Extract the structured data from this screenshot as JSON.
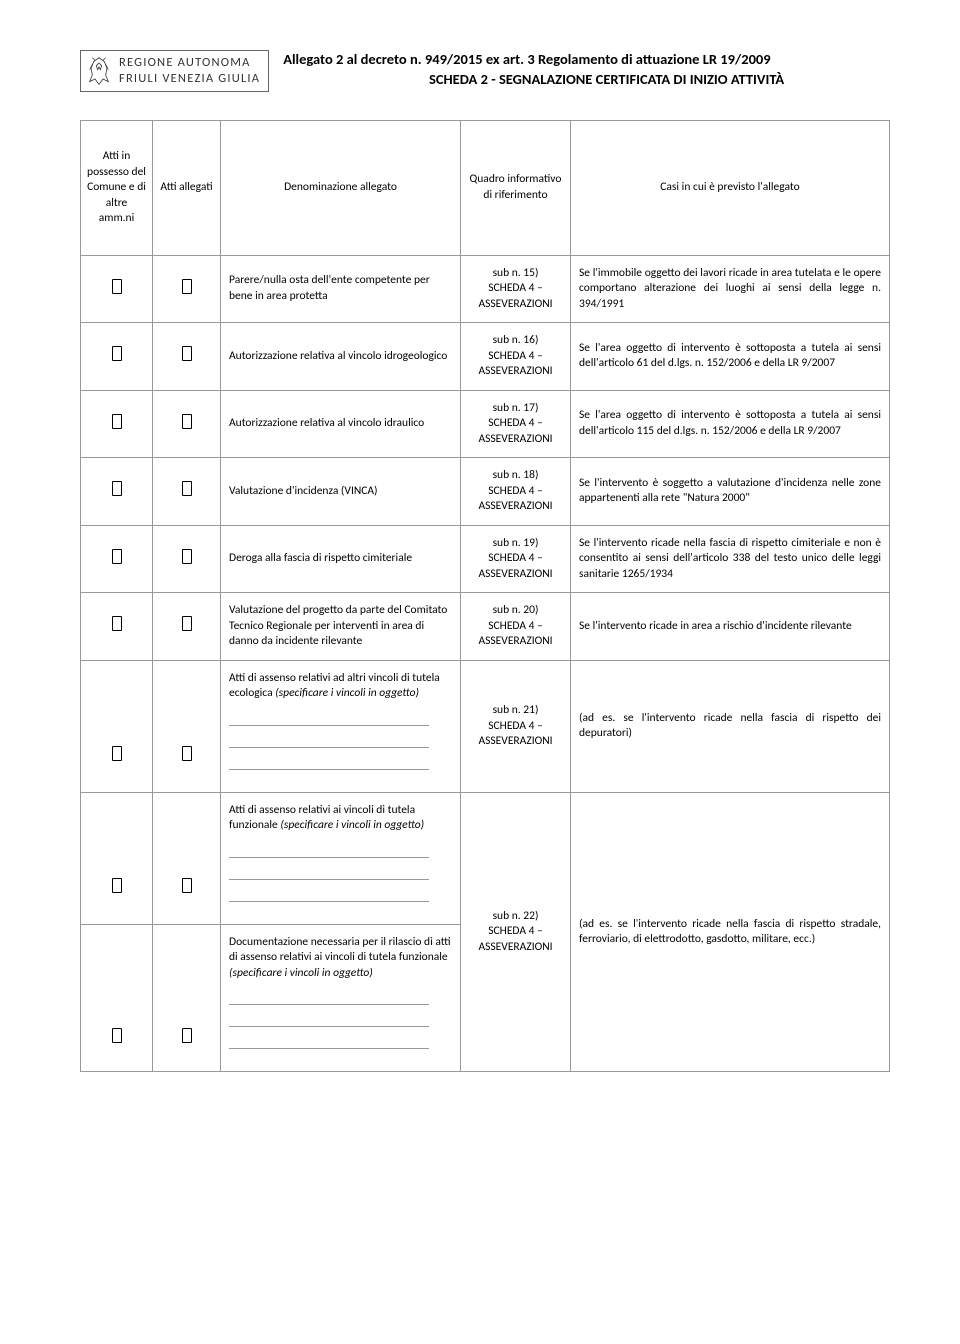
{
  "header": {
    "region_line1": "REGIONE AUTONOMA",
    "region_line2": "FRIULI VENEZIA GIULIA",
    "title1": "Allegato 2 al decreto n. 949/2015 ex art. 3 Regolamento di attuazione LR 19/2009",
    "title2": "SCHEDA  2   - SEGNALAZIONE  CERTIFICATA  DI INIZIO ATTIVITÀ"
  },
  "columns": {
    "c1": "Atti in possesso del Comune e di altre amm.ni",
    "c2": "Atti allegati",
    "c3": "Denominazione  allegato",
    "c4": "Quadro informativo di riferimento",
    "c5": "Casi in cui è previsto l'allegato"
  },
  "rows": [
    {
      "denom": "Parere/nulla osta dell'ente competente per bene in area protetta",
      "quadro": "sub n. 15)\nSCHEDA 4 –\nASSEVERAZIONI",
      "casi": "Se l'immobile oggetto dei lavori ricade in area tutelata e le opere comportano alterazione dei luoghi ai sensi della legge n. 394/1991"
    },
    {
      "denom": "Autorizzazione relativa al vincolo idrogeologico",
      "quadro": "sub n. 16)\nSCHEDA 4 –\nASSEVERAZIONI",
      "casi": "Se l'area oggetto di intervento è sottoposta a tutela ai sensi dell'articolo 61 del d.lgs. n. 152/2006 e della LR  9/2007"
    },
    {
      "denom": "Autorizzazione relativa al vincolo idraulico",
      "quadro": "sub n. 17)\nSCHEDA 4 –\nASSEVERAZIONI",
      "casi": "Se l'area oggetto di intervento è sottoposta a tutela ai sensi dell'articolo 115 del d.lgs. n. 152/2006 e della LR  9/2007"
    },
    {
      "denom": "Valutazione d'incidenza (VINCA)",
      "quadro": "sub n. 18)\nSCHEDA 4 –\nASSEVERAZIONI",
      "casi": "Se l'intervento è soggetto a valutazione d'incidenza nelle zone appartenenti alla rete \"Natura 2000\""
    },
    {
      "denom": "Deroga alla fascia di rispetto cimiteriale",
      "quadro": "sub n. 19)\nSCHEDA 4 –\nASSEVERAZIONI",
      "casi": "Se l'intervento ricade nella fascia di rispetto cimiteriale e non è consentito ai sensi dell'articolo 338 del testo unico delle leggi sanitarie 1265/1934"
    },
    {
      "denom": "Valutazione del progetto da parte del Comitato Tecnico Regionale per interventi in area di danno da incidente rilevante",
      "quadro": "sub n. 20)\nSCHEDA 4 –\nASSEVERAZIONI",
      "casi": "Se l'intervento ricade in area a rischio d'incidente rilevante"
    }
  ],
  "row7": {
    "denom_main": "Atti di assenso relativi ad altri vincoli di tutela ecologica ",
    "denom_italic": "(specificare i vincoli in oggetto)",
    "quadro": "sub n. 21)\nSCHEDA 4 –\nASSEVERAZIONI",
    "casi": "(ad es. se l'intervento ricade nella fascia di rispetto dei depuratori)"
  },
  "row8": {
    "denom_main": "Atti di assenso relativi ai vincoli di tutela   funzionale ",
    "denom_italic": "(specificare i vincoli in oggetto)"
  },
  "row9": {
    "denom_main": "Documentazione necessaria per il rilascio di atti di assenso relativi ai vincoli di tutela funzionale ",
    "denom_italic": "(specificare i vincoli in oggetto)"
  },
  "merged89": {
    "quadro": "sub n. 22)\nSCHEDA 4 –\nASSEVERAZIONI",
    "casi": "(ad es. se l'intervento ricade nella fascia di rispetto stradale, ferroviario, di elettrodotto, gasdotto, militare, ecc.)"
  }
}
